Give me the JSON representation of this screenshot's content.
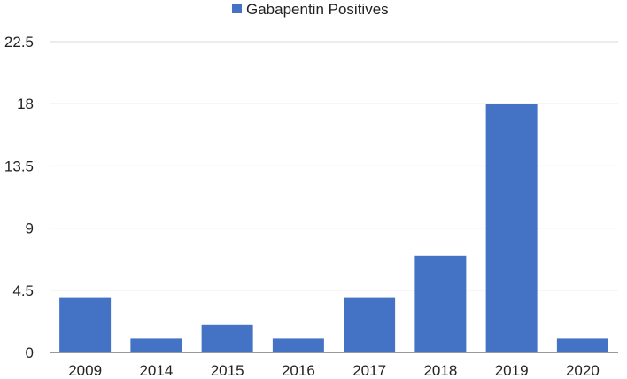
{
  "chart_data": {
    "type": "bar",
    "title": "",
    "xlabel": "",
    "ylabel": "",
    "categories": [
      "2009",
      "2014",
      "2015",
      "2016",
      "2017",
      "2018",
      "2019",
      "2020"
    ],
    "series": [
      {
        "name": "Gabapentin Positives",
        "values": [
          4,
          1,
          2,
          1,
          4,
          7,
          18,
          1
        ]
      }
    ],
    "ylim": [
      0,
      22.5
    ],
    "yticks": [
      0,
      4.5,
      9,
      13.5,
      18,
      22.5
    ],
    "ytick_labels": [
      "0",
      "4.5",
      "9",
      "13.5",
      "18",
      "22.5"
    ],
    "grid": true,
    "legend_position": "top-center",
    "colors": {
      "bar": "#4472C4",
      "grid": "#D9D9D9",
      "axis": "#333333"
    }
  }
}
